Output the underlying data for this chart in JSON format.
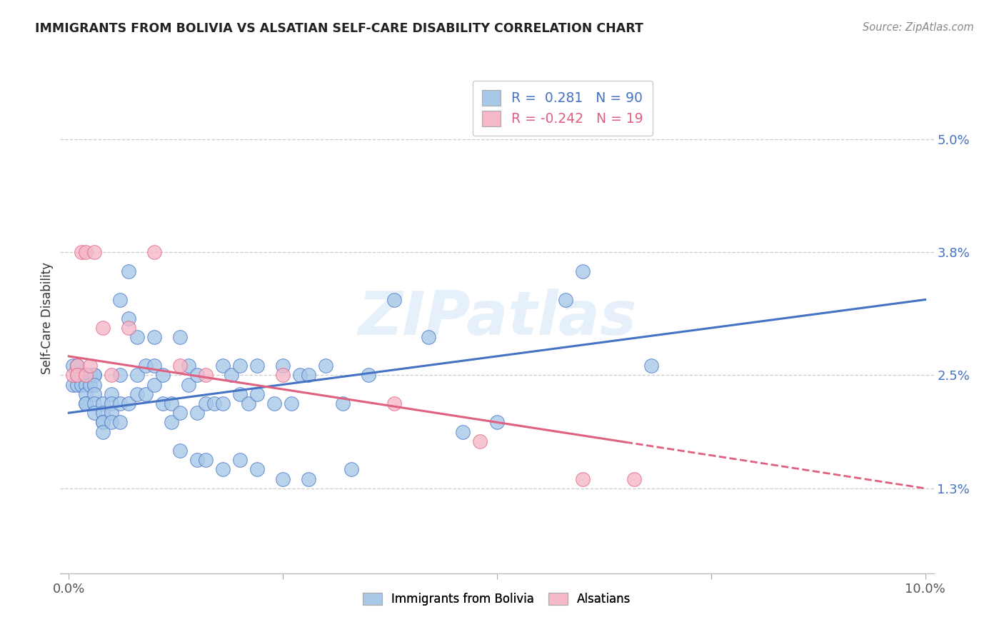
{
  "title": "IMMIGRANTS FROM BOLIVIA VS ALSATIAN SELF-CARE DISABILITY CORRELATION CHART",
  "source": "Source: ZipAtlas.com",
  "ylabel": "Self-Care Disability",
  "yticks": [
    "1.3%",
    "2.5%",
    "3.8%",
    "5.0%"
  ],
  "ytick_vals": [
    0.013,
    0.025,
    0.038,
    0.05
  ],
  "xlim": [
    -0.001,
    0.101
  ],
  "ylim": [
    0.004,
    0.058
  ],
  "blue_color": "#A8C8E8",
  "pink_color": "#F4B8C8",
  "line_blue": "#4472C4",
  "line_pink": "#E06080",
  "watermark": "ZIPatlas",
  "bolivia_x": [
    0.0005,
    0.0005,
    0.001,
    0.001,
    0.001,
    0.001,
    0.0015,
    0.0015,
    0.002,
    0.002,
    0.002,
    0.002,
    0.002,
    0.002,
    0.0025,
    0.0025,
    0.003,
    0.003,
    0.003,
    0.003,
    0.003,
    0.003,
    0.004,
    0.004,
    0.004,
    0.004,
    0.004,
    0.005,
    0.005,
    0.005,
    0.005,
    0.006,
    0.006,
    0.006,
    0.006,
    0.007,
    0.007,
    0.007,
    0.008,
    0.008,
    0.008,
    0.009,
    0.009,
    0.01,
    0.01,
    0.01,
    0.011,
    0.011,
    0.012,
    0.012,
    0.013,
    0.013,
    0.014,
    0.014,
    0.015,
    0.015,
    0.016,
    0.017,
    0.018,
    0.018,
    0.019,
    0.02,
    0.02,
    0.021,
    0.022,
    0.022,
    0.024,
    0.025,
    0.026,
    0.027,
    0.028,
    0.03,
    0.032,
    0.035,
    0.038,
    0.042,
    0.046,
    0.05,
    0.06,
    0.068,
    0.013,
    0.015,
    0.016,
    0.018,
    0.02,
    0.022,
    0.025,
    0.028,
    0.033,
    0.058
  ],
  "bolivia_y": [
    0.026,
    0.024,
    0.026,
    0.025,
    0.025,
    0.024,
    0.025,
    0.024,
    0.025,
    0.025,
    0.024,
    0.023,
    0.022,
    0.022,
    0.025,
    0.024,
    0.025,
    0.025,
    0.024,
    0.023,
    0.022,
    0.021,
    0.022,
    0.021,
    0.02,
    0.02,
    0.019,
    0.023,
    0.022,
    0.021,
    0.02,
    0.033,
    0.025,
    0.022,
    0.02,
    0.036,
    0.031,
    0.022,
    0.029,
    0.025,
    0.023,
    0.026,
    0.023,
    0.029,
    0.026,
    0.024,
    0.025,
    0.022,
    0.022,
    0.02,
    0.029,
    0.021,
    0.026,
    0.024,
    0.025,
    0.021,
    0.022,
    0.022,
    0.026,
    0.022,
    0.025,
    0.026,
    0.023,
    0.022,
    0.026,
    0.023,
    0.022,
    0.026,
    0.022,
    0.025,
    0.025,
    0.026,
    0.022,
    0.025,
    0.033,
    0.029,
    0.019,
    0.02,
    0.036,
    0.026,
    0.017,
    0.016,
    0.016,
    0.015,
    0.016,
    0.015,
    0.014,
    0.014,
    0.015,
    0.033
  ],
  "alsatian_x": [
    0.0005,
    0.001,
    0.001,
    0.0015,
    0.002,
    0.002,
    0.0025,
    0.003,
    0.004,
    0.005,
    0.007,
    0.01,
    0.013,
    0.016,
    0.025,
    0.038,
    0.048,
    0.06,
    0.066
  ],
  "alsatian_y": [
    0.025,
    0.026,
    0.025,
    0.038,
    0.038,
    0.025,
    0.026,
    0.038,
    0.03,
    0.025,
    0.03,
    0.038,
    0.026,
    0.025,
    0.025,
    0.022,
    0.018,
    0.014,
    0.014
  ]
}
